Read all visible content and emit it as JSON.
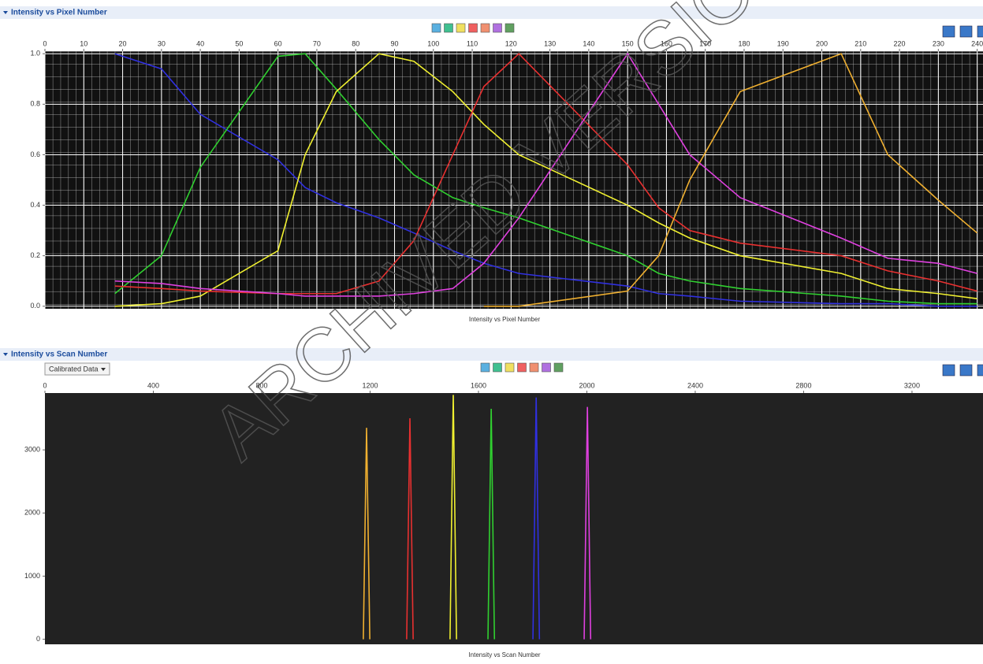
{
  "panels": [
    {
      "title": "Intensity vs Pixel Number"
    },
    {
      "title": "Intensity vs Scan Number",
      "dropdown": "Calibrated Data"
    }
  ],
  "watermark": "ARCHIVED VERSION",
  "chart_data": [
    {
      "type": "line",
      "xlabel": "Intensity vs Pixel Number",
      "grid": true,
      "xlim": [
        0,
        241.5
      ],
      "ylim": [
        -0.01,
        1.01
      ],
      "xticks": [
        0,
        10,
        20,
        30,
        40,
        50,
        60,
        70,
        80,
        90,
        100,
        110,
        120,
        130,
        140,
        150,
        160,
        170,
        180,
        190,
        200,
        210,
        220,
        230,
        240
      ],
      "yticks": [
        {
          "value": 0,
          "label": "0.0"
        },
        0.2,
        0.4,
        0.6,
        0.8,
        {
          "value": 1,
          "label": "1.0"
        }
      ],
      "x": [
        18,
        30,
        40,
        60,
        67,
        75,
        86,
        95,
        105,
        113,
        122,
        150,
        158,
        166,
        179,
        205,
        217,
        230,
        240
      ],
      "series": [
        {
          "color": "#3030e0",
          "values": [
            1.0,
            0.94,
            0.76,
            0.58,
            0.47,
            0.41,
            0.35,
            0.29,
            0.22,
            0.17,
            0.13,
            0.08,
            0.05,
            0.04,
            0.02,
            0.01,
            0.01,
            0.0,
            0.0
          ]
        },
        {
          "color": "#30d030",
          "values": [
            0.05,
            0.2,
            0.55,
            0.99,
            1.0,
            0.86,
            0.66,
            0.52,
            0.43,
            0.39,
            0.35,
            0.2,
            0.13,
            0.1,
            0.07,
            0.04,
            0.02,
            0.01,
            0.01
          ]
        },
        {
          "color": "#f0f030",
          "values": [
            0.0,
            0.01,
            0.04,
            0.22,
            0.6,
            0.85,
            1.0,
            0.97,
            0.85,
            0.72,
            0.6,
            0.4,
            0.33,
            0.27,
            0.2,
            0.13,
            0.07,
            0.05,
            0.03
          ]
        },
        {
          "color": "#e83030",
          "values": [
            0.08,
            0.07,
            0.06,
            0.05,
            0.05,
            0.05,
            0.1,
            0.26,
            0.6,
            0.87,
            1.0,
            0.56,
            0.39,
            0.3,
            0.25,
            0.2,
            0.14,
            0.1,
            0.06
          ]
        },
        {
          "color": "#e040e0",
          "values": [
            0.1,
            0.09,
            0.07,
            0.05,
            0.04,
            0.04,
            0.04,
            0.05,
            0.07,
            0.17,
            0.35,
            1.0,
            0.8,
            0.6,
            0.43,
            0.27,
            0.19,
            0.17,
            0.13
          ]
        },
        {
          "color": "#f0b030",
          "values": [
            null,
            null,
            null,
            null,
            null,
            null,
            null,
            null,
            null,
            0.0,
            0.0,
            0.06,
            0.2,
            0.5,
            0.85,
            1.0,
            0.6,
            0.42,
            0.29
          ]
        }
      ]
    },
    {
      "type": "line",
      "xlabel": "Intensity vs Scan Number",
      "grid": false,
      "xlim": [
        0,
        3462
      ],
      "ylim": [
        -80,
        3900
      ],
      "xticks": [
        0,
        400,
        800,
        1200,
        1600,
        2000,
        2400,
        2800,
        3200
      ],
      "yticks": [
        0,
        1000,
        2000,
        3000
      ],
      "series": [
        {
          "color": "#f0b030",
          "x": [
            1175,
            1187,
            1199
          ],
          "values": [
            0,
            3350,
            0
          ]
        },
        {
          "color": "#e83030",
          "x": [
            1335,
            1347,
            1359
          ],
          "values": [
            0,
            3500,
            0
          ]
        },
        {
          "color": "#f0f030",
          "x": [
            1495,
            1507,
            1519
          ],
          "values": [
            0,
            3870,
            0
          ]
        },
        {
          "color": "#30d030",
          "x": [
            1635,
            1647,
            1659
          ],
          "values": [
            0,
            3650,
            0
          ]
        },
        {
          "color": "#3030e0",
          "x": [
            1801,
            1813,
            1825
          ],
          "values": [
            0,
            3830,
            0
          ]
        },
        {
          "color": "#e040e0",
          "x": [
            1990,
            2002,
            2014
          ],
          "values": [
            0,
            3680,
            0
          ]
        }
      ]
    }
  ]
}
